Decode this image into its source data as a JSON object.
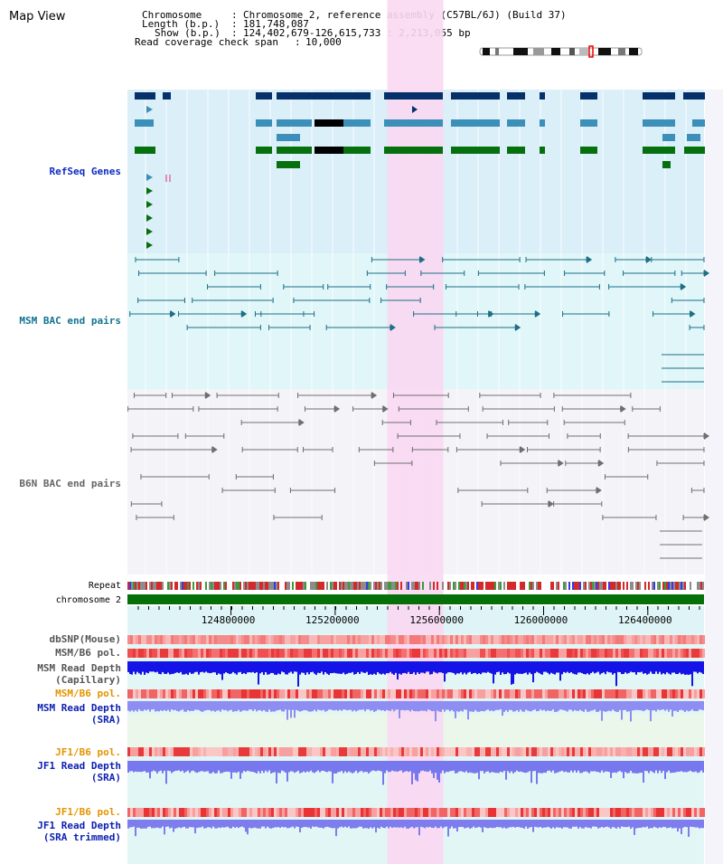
{
  "app": {
    "title": "Map View"
  },
  "header": {
    "chromosome_label": "Chromosome",
    "chromosome_value": "Chromosome 2, reference assembly (C57BL/6J) (Build 37)",
    "length_label": "Length (b.p.)",
    "length_value": "181,748,087",
    "show_label": "Show (b.p.)",
    "show_value": "124,402,679-126,615,733 : 2,213,055 bp",
    "read_coverage_label": "Read coverage check span",
    "read_coverage_value": "10,000"
  },
  "tracks": {
    "refseq": "RefSeq Genes",
    "msm_bac": "MSM BAC end pairs",
    "b6n_bac": "B6N BAC end pairs",
    "repeat": "Repeat",
    "chromosome": "chromosome 2",
    "dbsnp": "dbSNP(Mouse)",
    "msm_b6_pol_1": "MSM/B6 pol.",
    "msm_read_depth_cap_1": "MSM Read Depth",
    "msm_read_depth_cap_2": "(Capillary)",
    "msm_b6_pol_2": "MSM/B6 pol.",
    "msm_read_depth_sra_1": "MSM Read Depth",
    "msm_read_depth_sra_2": "(SRA)",
    "jf1_b6_pol_1": "JF1/B6 pol.",
    "jf1_read_depth_sra_1": "JF1 Read Depth",
    "jf1_read_depth_sra_2": "(SRA)",
    "jf1_b6_pol_2": "JF1/B6 pol.",
    "jf1_read_depth_trim_1": "JF1 Read Depth",
    "jf1_read_depth_trim_2": "(SRA trimmed)"
  },
  "axis": {
    "ticks": [
      {
        "value": 124800000,
        "label": "124800000"
      },
      {
        "value": 125200000,
        "label": "125200000"
      },
      {
        "value": 125600000,
        "label": "125600000"
      },
      {
        "value": 126000000,
        "label": "126000000"
      },
      {
        "value": 126400000,
        "label": "126400000"
      }
    ],
    "range": [
      124402679,
      126615733
    ],
    "highlight_range": [
      125400000,
      125615000
    ]
  },
  "colors": {
    "refseq_bg": "#dbeff9",
    "msm_bg": "#e0f6f9",
    "b6n_bg": "#f4f4f8",
    "highlight": "#f9d8f2",
    "gene_dark": "#06306a",
    "gene_teal": "#3c8fb8",
    "gene_green": "#06700e",
    "bac_msm": "#1d6f86",
    "bac_b6n": "#6f6f6f",
    "chromosome_bar": "#05700a",
    "track_label_blue": "#0c1fb3",
    "track_label_orange": "#e49400"
  }
}
